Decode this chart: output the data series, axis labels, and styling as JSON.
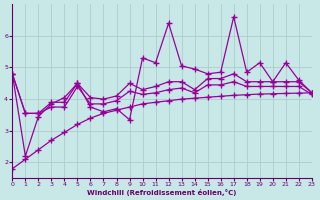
{
  "xlabel": "Windchill (Refroidissement éolien,°C)",
  "x_values": [
    0,
    1,
    2,
    3,
    4,
    5,
    6,
    7,
    8,
    9,
    10,
    11,
    12,
    13,
    14,
    15,
    16,
    17,
    18,
    19,
    20,
    21,
    22,
    23
  ],
  "line1_y": [
    4.8,
    2.2,
    3.45,
    3.85,
    4.05,
    4.5,
    3.75,
    3.6,
    3.7,
    3.35,
    5.3,
    5.15,
    6.4,
    5.05,
    4.95,
    4.8,
    4.85,
    6.6,
    4.85,
    5.15,
    4.55,
    5.15,
    4.6,
    4.2
  ],
  "line2_y": [
    4.8,
    3.55,
    3.55,
    3.9,
    3.9,
    4.5,
    4.05,
    4.0,
    4.1,
    4.5,
    4.3,
    4.4,
    4.55,
    4.55,
    4.3,
    4.65,
    4.65,
    4.8,
    4.55,
    4.55,
    4.55,
    4.55,
    4.55,
    4.2
  ],
  "line3_y": [
    4.8,
    3.55,
    3.55,
    3.75,
    3.75,
    4.4,
    3.85,
    3.85,
    3.95,
    4.25,
    4.15,
    4.2,
    4.3,
    4.35,
    4.2,
    4.45,
    4.45,
    4.55,
    4.4,
    4.4,
    4.4,
    4.4,
    4.4,
    4.15
  ],
  "line4_y": [
    1.8,
    2.1,
    2.4,
    2.7,
    2.95,
    3.2,
    3.4,
    3.55,
    3.65,
    3.75,
    3.85,
    3.9,
    3.95,
    4.0,
    4.03,
    4.06,
    4.09,
    4.12,
    4.14,
    4.16,
    4.17,
    4.18,
    4.19,
    4.2
  ],
  "ylim": [
    1.5,
    7.0
  ],
  "xlim": [
    0,
    23
  ],
  "yticks": [
    2,
    3,
    4,
    5,
    6
  ],
  "xticks": [
    0,
    1,
    2,
    3,
    4,
    5,
    6,
    7,
    8,
    9,
    10,
    11,
    12,
    13,
    14,
    15,
    16,
    17,
    18,
    19,
    20,
    21,
    22,
    23
  ],
  "line_color": "#990099",
  "bg_color": "#c8e8e8",
  "grid_color": "#a8c8c8",
  "text_color": "#660066",
  "marker": "+",
  "markersize": 4,
  "linewidth": 0.9
}
